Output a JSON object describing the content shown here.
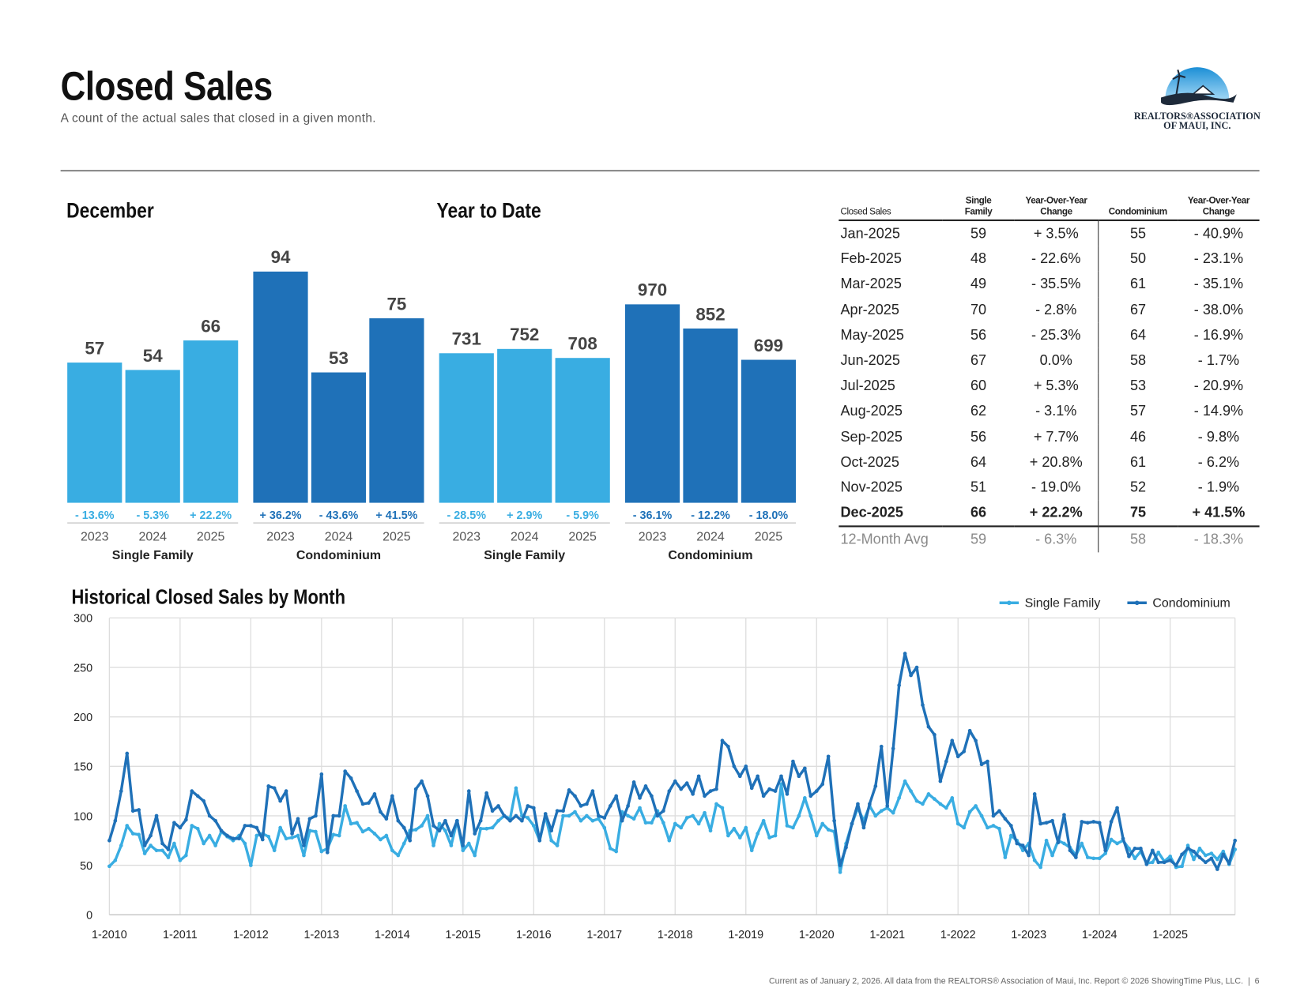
{
  "header": {
    "title": "Closed Sales",
    "subtitle": "A count of the actual sales that closed in a given month.",
    "logo_line1": "REALTORS®ASSOCIATION",
    "logo_line2": "OF MAUI, INC."
  },
  "chart_data": [
    {
      "type": "bar",
      "title": "December",
      "groups": [
        {
          "name": "Single Family",
          "color": "#39ade2",
          "categories": [
            "2023",
            "2024",
            "2025"
          ],
          "values": [
            57,
            54,
            66
          ],
          "changes": [
            "- 13.6%",
            "- 5.3%",
            "+ 22.2%"
          ]
        },
        {
          "name": "Condominium",
          "color": "#1f71b8",
          "categories": [
            "2023",
            "2024",
            "2025"
          ],
          "values": [
            94,
            53,
            75
          ],
          "changes": [
            "+ 36.2%",
            "- 43.6%",
            "+ 41.5%"
          ]
        }
      ]
    },
    {
      "type": "bar",
      "title": "Year to Date",
      "groups": [
        {
          "name": "Single Family",
          "color": "#39ade2",
          "categories": [
            "2023",
            "2024",
            "2025"
          ],
          "values": [
            731,
            752,
            708
          ],
          "changes": [
            "- 28.5%",
            "+ 2.9%",
            "- 5.9%"
          ]
        },
        {
          "name": "Condominium",
          "color": "#1f71b8",
          "categories": [
            "2023",
            "2024",
            "2025"
          ],
          "values": [
            970,
            852,
            699
          ],
          "changes": [
            "- 36.1%",
            "- 12.2%",
            "- 18.0%"
          ]
        }
      ]
    },
    {
      "type": "line",
      "title": "Historical Closed Sales by Month",
      "ylim": [
        0,
        300
      ],
      "yticks": [
        0,
        50,
        100,
        150,
        200,
        250,
        300
      ],
      "grid": true,
      "legend": "top-right",
      "categories": [
        "1-2010",
        null,
        null,
        null,
        null,
        null,
        null,
        null,
        null,
        null,
        null,
        null,
        "1-2011",
        null,
        null,
        null,
        null,
        null,
        null,
        null,
        null,
        null,
        null,
        null,
        "1-2012",
        null,
        null,
        null,
        null,
        null,
        null,
        null,
        null,
        null,
        null,
        null,
        "1-2013",
        null,
        null,
        null,
        null,
        null,
        null,
        null,
        null,
        null,
        null,
        null,
        "1-2014",
        null,
        null,
        null,
        null,
        null,
        null,
        null,
        null,
        null,
        null,
        null,
        "1-2015",
        null,
        null,
        null,
        null,
        null,
        null,
        null,
        null,
        null,
        null,
        null,
        "1-2016",
        null,
        null,
        null,
        null,
        null,
        null,
        null,
        null,
        null,
        null,
        null,
        "1-2017",
        null,
        null,
        null,
        null,
        null,
        null,
        null,
        null,
        null,
        null,
        null,
        "1-2018",
        null,
        null,
        null,
        null,
        null,
        null,
        null,
        null,
        null,
        null,
        null,
        "1-2019",
        null,
        null,
        null,
        null,
        null,
        null,
        null,
        null,
        null,
        null,
        null,
        "1-2020",
        null,
        null,
        null,
        null,
        null,
        null,
        null,
        null,
        null,
        null,
        null,
        "1-2021",
        null,
        null,
        null,
        null,
        null,
        null,
        null,
        null,
        null,
        null,
        null,
        "1-2022",
        null,
        null,
        null,
        null,
        null,
        null,
        null,
        null,
        null,
        null,
        null,
        "1-2023",
        null,
        null,
        null,
        null,
        null,
        null,
        null,
        null,
        null,
        null,
        null,
        "1-2024",
        null,
        null,
        null,
        null,
        null,
        null,
        null,
        null,
        null,
        null,
        null,
        "1-2025",
        null,
        null,
        null,
        null,
        null,
        null,
        null,
        null,
        null,
        null,
        null
      ],
      "series": [
        {
          "name": "Single Family",
          "color": "#39ade2",
          "values": [
            49,
            55,
            70,
            90,
            82,
            81,
            62,
            70,
            65,
            65,
            58,
            72,
            55,
            60,
            90,
            87,
            72,
            80,
            70,
            84,
            79,
            75,
            80,
            72,
            50,
            80,
            82,
            79,
            65,
            88,
            77,
            78,
            80,
            60,
            85,
            84,
            64,
            67,
            81,
            80,
            110,
            92,
            93,
            84,
            87,
            82,
            76,
            80,
            65,
            60,
            72,
            85,
            86,
            90,
            100,
            70,
            92,
            85,
            70,
            95,
            65,
            72,
            60,
            87,
            87,
            88,
            95,
            100,
            97,
            128,
            100,
            98,
            90,
            75,
            100,
            75,
            70,
            100,
            100,
            104,
            95,
            100,
            95,
            97,
            88,
            67,
            64,
            104,
            100,
            97,
            108,
            93,
            93,
            105,
            93,
            75,
            92,
            88,
            98,
            100,
            92,
            103,
            85,
            112,
            108,
            80,
            87,
            78,
            88,
            65,
            82,
            95,
            78,
            80,
            132,
            90,
            88,
            100,
            118,
            100,
            80,
            92,
            86,
            84,
            43,
            72,
            92,
            108,
            95,
            110,
            100,
            105,
            108,
            103,
            118,
            135,
            125,
            115,
            112,
            122,
            117,
            112,
            108,
            118,
            92,
            88,
            104,
            110,
            100,
            88,
            90,
            87,
            58,
            80,
            75,
            65,
            72,
            55,
            48,
            75,
            60,
            75,
            72,
            68,
            60,
            72,
            58,
            57,
            57,
            62,
            76,
            72,
            75,
            67,
            57,
            64,
            52,
            53,
            63,
            54,
            59,
            48,
            49,
            70,
            56,
            67,
            60,
            62,
            56,
            64,
            51,
            66
          ]
        },
        {
          "name": "Condominium",
          "color": "#1f71b8",
          "values": [
            75,
            95,
            125,
            163,
            105,
            106,
            70,
            80,
            100,
            72,
            66,
            93,
            88,
            96,
            125,
            120,
            115,
            100,
            95,
            85,
            80,
            77,
            77,
            90,
            90,
            88,
            76,
            130,
            128,
            115,
            125,
            82,
            97,
            70,
            97,
            100,
            142,
            63,
            100,
            100,
            145,
            138,
            125,
            112,
            113,
            122,
            104,
            97,
            120,
            95,
            88,
            75,
            127,
            135,
            120,
            90,
            85,
            95,
            80,
            95,
            70,
            125,
            82,
            95,
            123,
            105,
            110,
            100,
            95,
            100,
            95,
            110,
            108,
            75,
            102,
            85,
            105,
            105,
            126,
            120,
            110,
            112,
            125,
            100,
            98,
            110,
            120,
            95,
            110,
            134,
            118,
            130,
            120,
            100,
            105,
            125,
            135,
            127,
            133,
            122,
            140,
            120,
            125,
            127,
            176,
            170,
            150,
            140,
            150,
            128,
            140,
            120,
            127,
            125,
            140,
            122,
            155,
            140,
            148,
            120,
            125,
            132,
            160,
            95,
            50,
            68,
            92,
            112,
            88,
            112,
            130,
            170,
            110,
            168,
            232,
            264,
            242,
            250,
            212,
            190,
            182,
            135,
            155,
            176,
            160,
            165,
            186,
            176,
            152,
            155,
            100,
            105,
            97,
            90,
            72,
            70,
            60,
            122,
            92,
            93,
            95,
            73,
            101,
            65,
            58,
            94,
            93,
            94,
            93,
            65,
            94,
            108,
            77,
            59,
            67,
            67,
            51,
            65,
            53,
            53,
            55,
            50,
            61,
            67,
            64,
            58,
            53,
            57,
            46,
            61,
            52,
            75
          ]
        }
      ]
    }
  ],
  "table": {
    "header": [
      "Closed Sales",
      "Single Family",
      "Year-Over-Year Change",
      "Condominium",
      "Year-Over-Year Change"
    ],
    "rows": [
      [
        "Jan-2025",
        "59",
        "+ 3.5%",
        "55",
        "- 40.9%"
      ],
      [
        "Feb-2025",
        "48",
        "- 22.6%",
        "50",
        "- 23.1%"
      ],
      [
        "Mar-2025",
        "49",
        "- 35.5%",
        "61",
        "- 35.1%"
      ],
      [
        "Apr-2025",
        "70",
        "- 2.8%",
        "67",
        "- 38.0%"
      ],
      [
        "May-2025",
        "56",
        "- 25.3%",
        "64",
        "- 16.9%"
      ],
      [
        "Jun-2025",
        "67",
        "0.0%",
        "58",
        "- 1.7%"
      ],
      [
        "Jul-2025",
        "60",
        "+ 5.3%",
        "53",
        "- 20.9%"
      ],
      [
        "Aug-2025",
        "62",
        "- 3.1%",
        "57",
        "- 14.9%"
      ],
      [
        "Sep-2025",
        "56",
        "+ 7.7%",
        "46",
        "- 9.8%"
      ],
      [
        "Oct-2025",
        "64",
        "+ 20.8%",
        "61",
        "- 6.2%"
      ],
      [
        "Nov-2025",
        "51",
        "- 19.0%",
        "52",
        "- 1.9%"
      ],
      [
        "Dec-2025",
        "66",
        "+ 22.2%",
        "75",
        "+ 41.5%"
      ]
    ],
    "average": [
      "12-Month Avg",
      "59",
      "- 6.3%",
      "58",
      "- 18.3%"
    ]
  },
  "footer": "Current as of January 2, 2026. All data from the REALTORS® Association of Maui, Inc. Report © 2026 ShowingTime Plus, LLC.  |  6"
}
